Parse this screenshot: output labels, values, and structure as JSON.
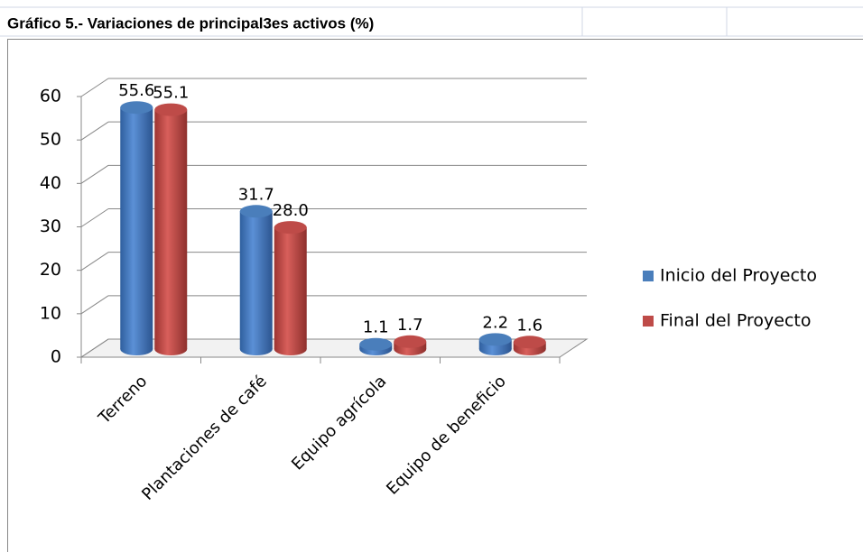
{
  "chart_data": {
    "type": "bar3d",
    "title": "Gráfico 5.- Variaciones de principal3es activos (%)",
    "categories": [
      "Terreno",
      "Plantaciones de café",
      "Equipo agrícola",
      "Equipo de beneficio"
    ],
    "series": [
      {
        "name": "Inicio del Proyecto",
        "color": "#4a7ebb",
        "values": [
          55.6,
          31.7,
          1.1,
          2.2
        ]
      },
      {
        "name": "Final del Proyecto",
        "color": "#be4b48",
        "values": [
          55.1,
          28.0,
          1.7,
          1.6
        ],
        "value_labels": [
          "55.1",
          "28.0",
          "1.7",
          "1.6"
        ]
      }
    ],
    "ylim": [
      0,
      60
    ],
    "yticks": [
      0,
      10,
      20,
      30,
      40,
      50,
      60
    ],
    "grid": true,
    "legend": "right"
  }
}
